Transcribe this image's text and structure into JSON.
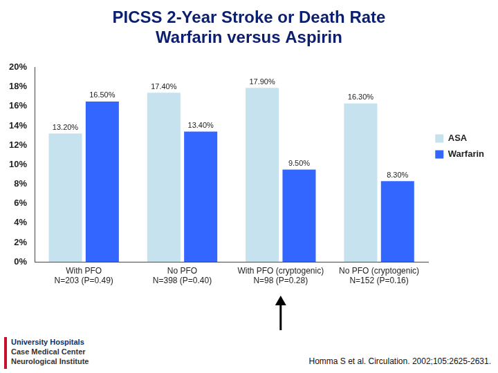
{
  "chart_data": {
    "type": "bar",
    "title": [
      "PICSS 2-Year Stroke or Death Rate",
      "Warfarin versus Aspirin"
    ],
    "categories": [
      "With PFO",
      "No PFO",
      "With PFO (cryptogenic)",
      "No PFO (cryptogenic)"
    ],
    "category_notes": [
      "N=203 (P=0.49)",
      "N=398 (P=0.40)",
      "N=98 (P=0.28)",
      "N=152 (P=0.16)"
    ],
    "series": [
      {
        "name": "ASA",
        "color": "#c6e2ee",
        "values": [
          13.2,
          17.4,
          17.9,
          16.3
        ],
        "value_labels": [
          "13.20%",
          "17.40%",
          "17.90%",
          "16.30%"
        ]
      },
      {
        "name": "Warfarin",
        "color": "#3366ff",
        "values": [
          16.5,
          13.4,
          9.5,
          8.3
        ],
        "value_labels": [
          "16.50%",
          "13.40%",
          "9.50%",
          "8.30%"
        ]
      }
    ],
    "ylim": [
      0,
      20
    ],
    "yticks": [
      {
        "value": 0,
        "label": "0%"
      },
      {
        "value": 2,
        "label": "2%"
      },
      {
        "value": 4,
        "label": "4%"
      },
      {
        "value": 6,
        "label": "6%"
      },
      {
        "value": 8,
        "label": "8%"
      },
      {
        "value": 10,
        "label": "10%"
      },
      {
        "value": 12,
        "label": "12%"
      },
      {
        "value": 14,
        "label": "14%"
      },
      {
        "value": 16,
        "label": "16%"
      },
      {
        "value": 18,
        "label": "18%"
      },
      {
        "value": 20,
        "label": "20%"
      }
    ],
    "grid": false,
    "legend": "right",
    "data_labels": true,
    "source": "Homma S et al. Circulation. 2002;105:2625-2631.",
    "logo_text": [
      "University Hospitals",
      "Case Medical Center",
      "Neurological Institute"
    ]
  }
}
